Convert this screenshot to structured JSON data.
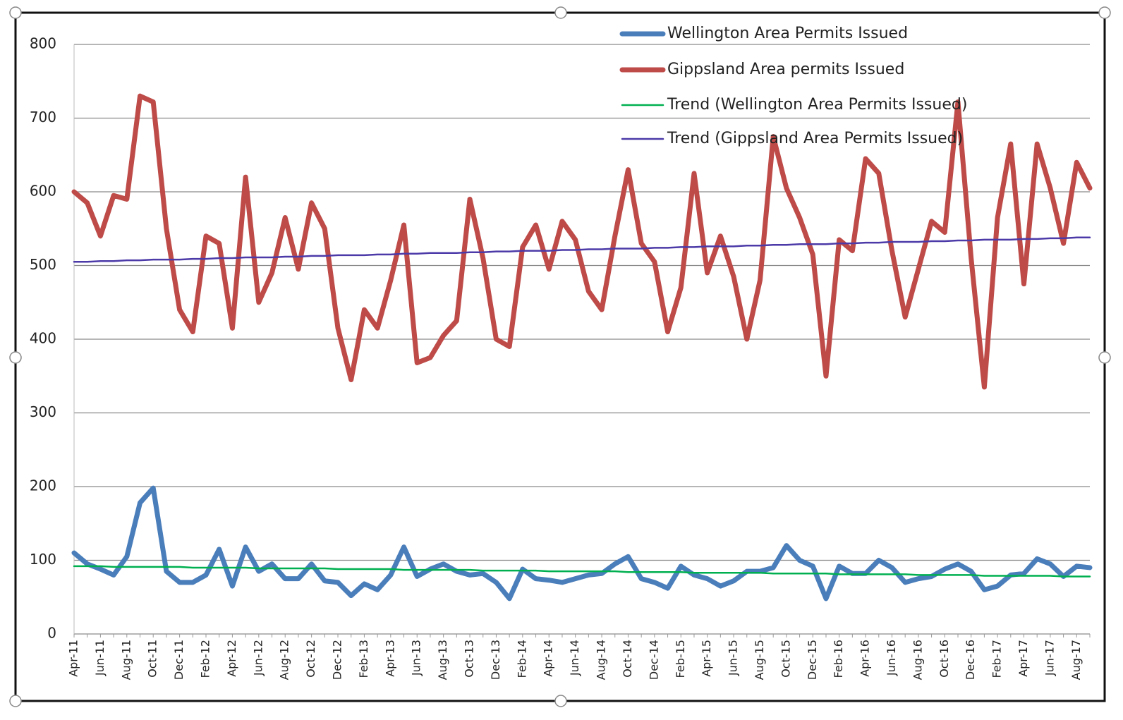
{
  "chart_data": {
    "type": "line",
    "categories": [
      "Apr-11",
      null,
      "Jun-11",
      null,
      "Aug-11",
      null,
      "Oct-11",
      null,
      "Dec-11",
      null,
      "Feb-12",
      null,
      "Apr-12",
      null,
      "Jun-12",
      null,
      "Aug-12",
      null,
      "Oct-12",
      null,
      "Dec-12",
      null,
      "Feb-13",
      null,
      "Apr-13",
      null,
      "Jun-13",
      null,
      "Aug-13",
      null,
      "Oct-13",
      null,
      "Dec-13",
      null,
      "Feb-14",
      null,
      "Apr-14",
      null,
      "Jun-14",
      null,
      "Aug-14",
      null,
      "Oct-14",
      null,
      "Dec-14",
      null,
      "Feb-15",
      null,
      "Apr-15",
      null,
      "Jun-15",
      null,
      "Aug-15",
      null,
      "Oct-15",
      null,
      "Dec-15",
      null,
      "Feb-16",
      null,
      "Apr-16",
      null,
      "Jun-16",
      null,
      "Aug-16",
      null,
      "Oct-16",
      null,
      "Dec-16",
      null,
      "Feb-17",
      null,
      "Apr-17",
      null,
      "Jun-17",
      null,
      "Aug-17",
      null
    ],
    "series": [
      {
        "name": "Wellington Area Permits Issued",
        "color": "#4a7ebb",
        "values": [
          110,
          95,
          88,
          80,
          105,
          178,
          198,
          85,
          70,
          70,
          80,
          115,
          65,
          118,
          85,
          95,
          75,
          75,
          95,
          72,
          70,
          52,
          68,
          60,
          80,
          118,
          78,
          88,
          95,
          85,
          80,
          82,
          70,
          48,
          88,
          75,
          73,
          70,
          75,
          80,
          82,
          95,
          105,
          75,
          70,
          62,
          92,
          80,
          75,
          65,
          72,
          85,
          85,
          90,
          120,
          100,
          92,
          48,
          92,
          82,
          82,
          100,
          90,
          70,
          75,
          78,
          88,
          95,
          85,
          60,
          65,
          80,
          82,
          102,
          95,
          78,
          92,
          90
        ]
      },
      {
        "name": "Gippsland Area permits Issued",
        "color": "#be4b48",
        "values": [
          600,
          585,
          540,
          595,
          590,
          730,
          722,
          550,
          440,
          410,
          540,
          530,
          415,
          620,
          450,
          490,
          565,
          495,
          585,
          550,
          415,
          345,
          440,
          415,
          480,
          555,
          368,
          375,
          405,
          425,
          590,
          510,
          400,
          390,
          525,
          555,
          495,
          560,
          535,
          465,
          440,
          540,
          630,
          530,
          505,
          410,
          470,
          625,
          490,
          540,
          485,
          400,
          480,
          675,
          605,
          565,
          515,
          350,
          535,
          520,
          645,
          625,
          520,
          430,
          495,
          560,
          545,
          722,
          510,
          335,
          565,
          665,
          475,
          665,
          605,
          530,
          640,
          605
        ]
      },
      {
        "name": "Trend (Wellington Area Permits Issued)",
        "color": "#00b050",
        "trend": true,
        "values": [
          92,
          92,
          92,
          91,
          91,
          91,
          91,
          91,
          91,
          90,
          90,
          90,
          90,
          90,
          89,
          89,
          89,
          89,
          89,
          89,
          88,
          88,
          88,
          88,
          88,
          87,
          87,
          87,
          87,
          87,
          87,
          86,
          86,
          86,
          86,
          86,
          85,
          85,
          85,
          85,
          85,
          85,
          84,
          84,
          84,
          84,
          84,
          83,
          83,
          83,
          83,
          83,
          83,
          82,
          82,
          82,
          82,
          82,
          81,
          81,
          81,
          81,
          81,
          81,
          80,
          80,
          80,
          80,
          80,
          79,
          79,
          79,
          79,
          79,
          79,
          78,
          78,
          78
        ]
      },
      {
        "name": "Trend (Gippsland Area Permits Issued)",
        "color": "#4b3aa8",
        "trend": true,
        "values": [
          505,
          505,
          506,
          506,
          507,
          507,
          508,
          508,
          508,
          509,
          509,
          510,
          510,
          511,
          511,
          511,
          512,
          512,
          513,
          513,
          514,
          514,
          514,
          515,
          515,
          516,
          516,
          517,
          517,
          517,
          518,
          518,
          519,
          519,
          520,
          520,
          520,
          521,
          521,
          522,
          522,
          523,
          523,
          523,
          524,
          524,
          525,
          525,
          526,
          526,
          526,
          527,
          527,
          528,
          528,
          529,
          529,
          529,
          530,
          530,
          531,
          531,
          532,
          532,
          532,
          533,
          533,
          534,
          534,
          535,
          535,
          535,
          536,
          536,
          537,
          537,
          538,
          538
        ]
      }
    ],
    "ylim": [
      0,
      800
    ],
    "yticks": [
      0,
      100,
      200,
      300,
      400,
      500,
      600,
      700,
      800
    ],
    "grid": true,
    "legend": "top-right"
  }
}
